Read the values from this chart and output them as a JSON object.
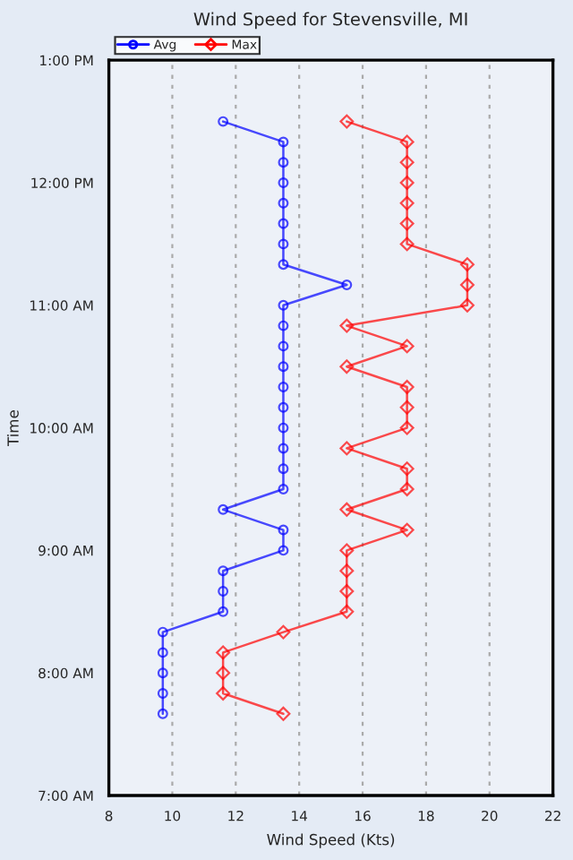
{
  "chart_data": {
    "type": "line",
    "orientation": "horizontal",
    "title": "Wind Speed for Stevensville, MI",
    "xlabel": "Wind Speed (Kts)",
    "ylabel": "Time",
    "x": [
      12.5,
      12.3333,
      12.1667,
      12.0,
      11.8333,
      11.6667,
      11.5,
      11.3333,
      11.1667,
      11.0,
      10.8333,
      10.6667,
      10.5,
      10.3333,
      10.1667,
      10.0,
      9.8333,
      9.6667,
      9.5,
      9.3333,
      9.1667,
      9.0,
      8.8333,
      8.6667,
      8.5,
      8.3333,
      8.1667,
      8.0,
      7.8333,
      7.6667
    ],
    "series": [
      {
        "name": "Avg",
        "color": "#0000ff",
        "marker": "circle",
        "values": [
          11.6,
          13.5,
          13.5,
          13.5,
          13.5,
          13.5,
          13.5,
          13.5,
          15.5,
          13.5,
          13.5,
          13.5,
          13.5,
          13.5,
          13.5,
          13.5,
          13.5,
          13.5,
          13.5,
          11.6,
          13.5,
          13.5,
          11.6,
          11.6,
          11.6,
          9.7,
          9.7,
          9.7,
          9.7,
          9.7
        ]
      },
      {
        "name": "Max",
        "color": "#ff0000",
        "marker": "diamond",
        "values": [
          15.5,
          17.4,
          17.4,
          17.4,
          17.4,
          17.4,
          17.4,
          19.3,
          19.3,
          19.3,
          15.5,
          17.4,
          15.5,
          17.4,
          17.4,
          17.4,
          15.5,
          17.4,
          17.4,
          15.5,
          17.4,
          15.5,
          15.5,
          15.5,
          15.5,
          13.5,
          11.6,
          11.6,
          11.6,
          13.5
        ]
      }
    ],
    "xlim": [
      8,
      22
    ],
    "xticks": [
      8,
      10,
      12,
      14,
      16,
      18,
      20,
      22
    ],
    "ylim": [
      7,
      13
    ],
    "yticks": [
      {
        "value": 7,
        "label": "7:00 AM"
      },
      {
        "value": 8,
        "label": "8:00 AM"
      },
      {
        "value": 9,
        "label": "9:00 AM"
      },
      {
        "value": 10,
        "label": "10:00 AM"
      },
      {
        "value": 11,
        "label": "11:00 AM"
      },
      {
        "value": 12,
        "label": "12:00 PM"
      },
      {
        "value": 13,
        "label": "1:00 PM"
      }
    ],
    "grid": "x",
    "legend": "top left"
  }
}
